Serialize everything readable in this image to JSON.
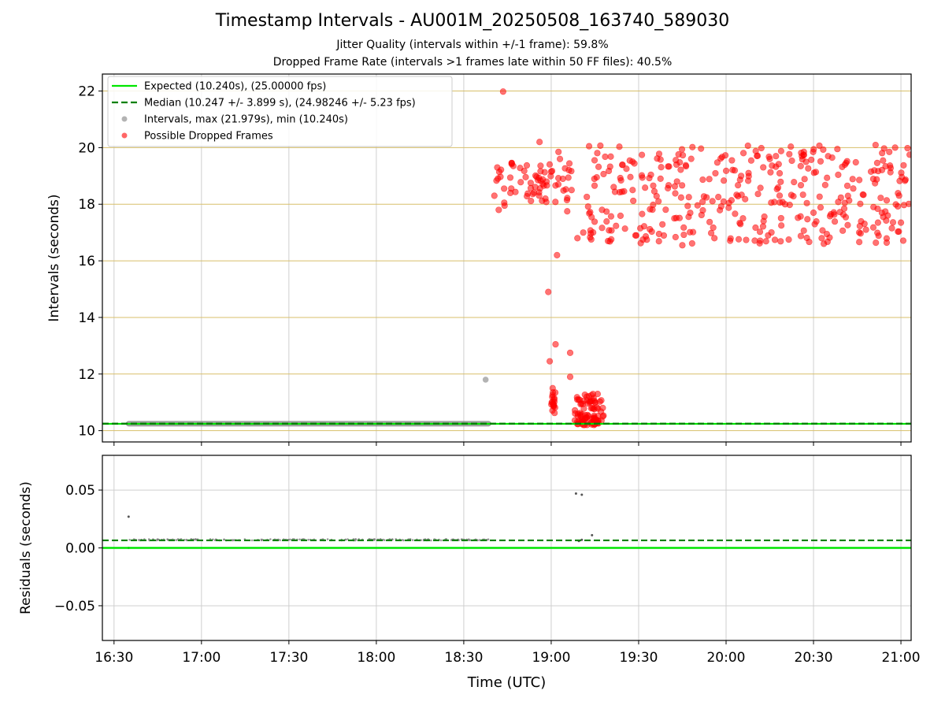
{
  "figure": {
    "title": "Timestamp Intervals - AU001M_20250508_163740_589030",
    "subtitle_1": "Jitter Quality (intervals within +/-1 frame): 59.8%",
    "subtitle_2": "Dropped Frame Rate (intervals >1 frames late within 50 FF files): 40.5%"
  },
  "colors": {
    "expected": "#00e600",
    "median": "#008000",
    "intervals": "#808080",
    "dropped": "#ff0000",
    "hgrid_top": "#d8bf6a",
    "grid": "#cfcfcf"
  },
  "chart_data": [
    {
      "type": "scatter",
      "ylabel": "Intervals (seconds)",
      "ylim": [
        9.6,
        22.6
      ],
      "yticks": [
        10,
        12,
        14,
        16,
        18,
        20,
        22
      ],
      "ytick_labels": [
        "10",
        "12",
        "14",
        "16",
        "18",
        "20",
        "22"
      ],
      "xlim_minutes": [
        986,
        1263.5
      ],
      "xticks_minutes": [
        990,
        1020,
        1050,
        1080,
        1110,
        1140,
        1170,
        1200,
        1230,
        1260
      ],
      "grid": "both",
      "legend_position": "upper-left",
      "legend": [
        "Expected (10.240s), (25.00000 fps)",
        "Median (10.247 +/- 3.899 s), (24.98246 +/- 5.23 fps)",
        "Intervals, max (21.979s), min (10.240s)",
        "Possible Dropped Frames"
      ],
      "expected_interval": 10.24,
      "median_interval": 10.247,
      "series": [
        {
          "name": "Intervals, max (21.979s), min (10.240s)",
          "x_minutes_range": [
            995,
            1118.5
          ],
          "y_constant": 10.245,
          "outlier": {
            "x_minutes": 1117.5,
            "y": 11.8
          }
        },
        {
          "name": "Possible Dropped Frames",
          "points": [
            [
              1123.5,
              21.98
            ],
            [
              1136,
              20.2
            ],
            [
              1142.5,
              19.85
            ],
            [
              1143,
              19.6
            ],
            [
              1121.5,
              19.3
            ],
            [
              1127,
              19.35
            ],
            [
              1140,
              19.15
            ],
            [
              1144,
              18.9
            ],
            [
              1147,
              18.5
            ],
            [
              1120.5,
              18.3
            ],
            [
              1122,
              17.8
            ],
            [
              1124,
              17.95
            ],
            [
              1126,
              18.4
            ],
            [
              1138,
              18.2
            ],
            [
              1142,
              16.2
            ],
            [
              1139,
              14.9
            ],
            [
              1141.5,
              13.05
            ],
            [
              1146.5,
              12.75
            ],
            [
              1139.5,
              12.45
            ],
            [
              1140.5,
              11.5
            ],
            [
              1146.5,
              11.9
            ],
            [
              1145.5,
              17.75
            ],
            [
              1153,
              20.05
            ],
            [
              1151,
              17.0
            ],
            [
              1149,
              16.8
            ],
            [
              1159.5,
              16.7
            ],
            [
              1177,
              16.95
            ],
            [
              1185,
              16.55
            ],
            [
              1196,
              16.8
            ],
            [
              1221.5,
              16.75
            ],
            [
              1230,
              17.7
            ],
            [
              1248,
              17.1
            ],
            [
              1258,
              20.0
            ],
            [
              1260,
              17.35
            ],
            [
              1202,
              19.55
            ],
            [
              1226,
              19.7
            ],
            [
              1215,
              19.6
            ],
            [
              1256,
              19.85
            ],
            [
              1263,
              19.75
            ],
            [
              1183,
              19.4
            ]
          ],
          "dense_clusters": [
            {
              "x_minutes_range": [
                1148,
                1158
              ],
              "y_range": [
                10.2,
                11.3
              ]
            },
            {
              "x_minutes_range": [
                1140,
                1141.5
              ],
              "y_range": [
                10.6,
                11.4
              ]
            },
            {
              "x_minutes_range": [
                1152,
                1263.5
              ],
              "y_range": [
                16.6,
                20.1
              ]
            }
          ]
        }
      ]
    },
    {
      "type": "scatter",
      "xlabel": "Time (UTC)",
      "ylabel": "Residuals (seconds)",
      "ylim": [
        -0.08,
        0.08
      ],
      "yticks": [
        0.05,
        0.0,
        -0.05
      ],
      "ytick_labels": [
        "0.05",
        "0.00",
        "−0.05"
      ],
      "xticks_minutes": [
        990,
        1020,
        1050,
        1080,
        1110,
        1140,
        1170,
        1200,
        1230,
        1260
      ],
      "xtick_labels": [
        "16:30",
        "17:00",
        "17:30",
        "18:00",
        "18:30",
        "19:00",
        "19:30",
        "20:00",
        "20:30",
        "21:00"
      ],
      "expected_residual": 0.0,
      "median_residual": 0.0065,
      "points": [
        [
          995,
          0.027
        ],
        [
          995,
          0.0
        ],
        [
          1148.5,
          0.047
        ],
        [
          1150.5,
          0.046
        ],
        [
          1149.5,
          0.006
        ],
        [
          1150.5,
          0.007
        ],
        [
          1154,
          0.011
        ]
      ],
      "dense_band": {
        "x_minutes_range": [
          995,
          1118.5
        ],
        "y": 0.007
      }
    }
  ]
}
